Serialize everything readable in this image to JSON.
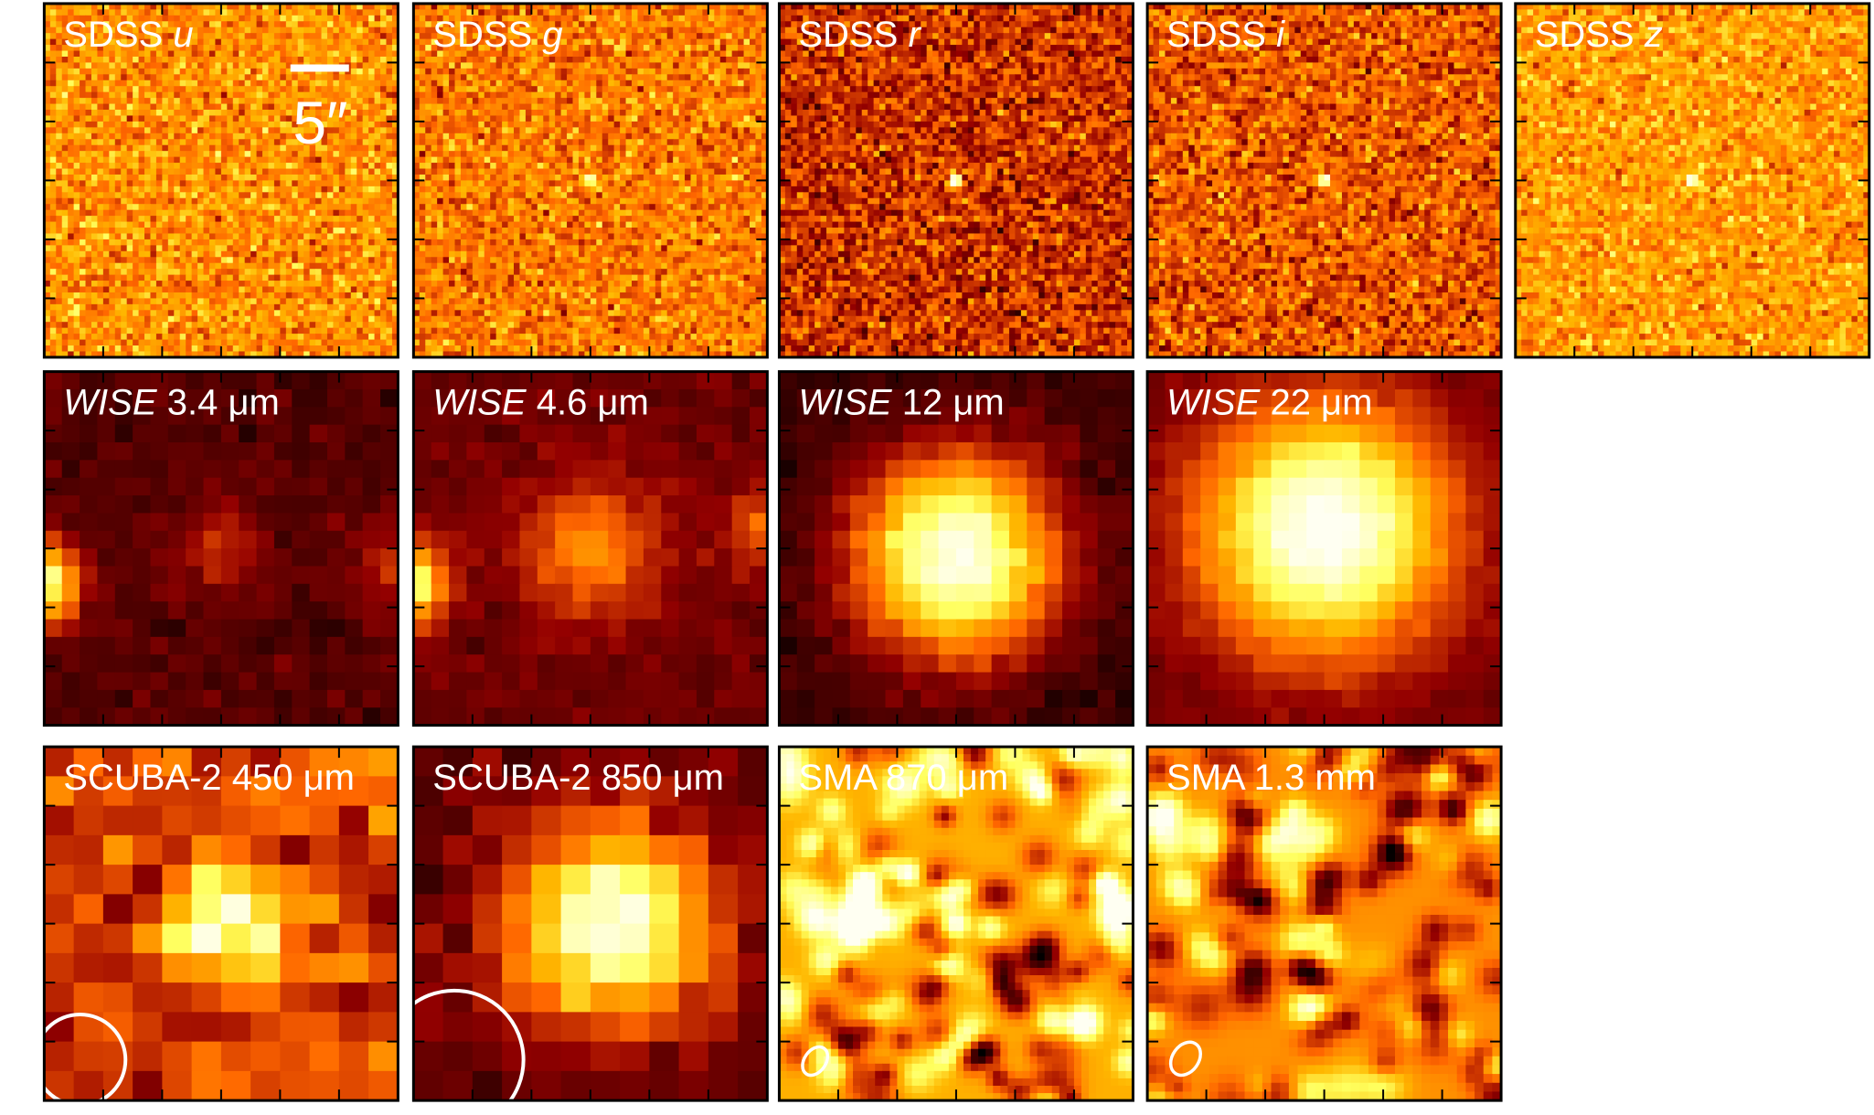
{
  "panels": [
    {
      "label": [
        {
          "text": "SDSS"
        },
        {
          "text": "u",
          "italic": true
        }
      ]
    },
    {
      "label": [
        {
          "text": "SDSS"
        },
        {
          "text": "g",
          "italic": true
        }
      ]
    },
    {
      "label": [
        {
          "text": "SDSS"
        },
        {
          "text": "r",
          "italic": true
        }
      ]
    },
    {
      "label": [
        {
          "text": "SDSS"
        },
        {
          "text": "i",
          "italic": true
        }
      ]
    },
    {
      "label": [
        {
          "text": "SDSS"
        },
        {
          "text": "z",
          "italic": true
        }
      ]
    },
    {
      "label": [
        {
          "text": "WISE",
          "italic": true
        },
        {
          "text": "3.4 μm"
        }
      ]
    },
    {
      "label": [
        {
          "text": "WISE",
          "italic": true
        },
        {
          "text": "4.6 μm"
        }
      ]
    },
    {
      "label": [
        {
          "text": "WISE",
          "italic": true
        },
        {
          "text": "12 μm"
        }
      ]
    },
    {
      "label": [
        {
          "text": "WISE",
          "italic": true
        },
        {
          "text": "22 μm"
        }
      ]
    },
    {
      "label": [
        {
          "text": "SCUBA-2 450 μm"
        }
      ]
    },
    {
      "label": [
        {
          "text": "SCUBA-2 850 μm"
        }
      ]
    },
    {
      "label": [
        {
          "text": "SMA 870 μm"
        }
      ]
    },
    {
      "label": [
        {
          "text": "SMA 1.3 mm"
        }
      ]
    }
  ],
  "scale_bar": {
    "label": "5″"
  }
}
